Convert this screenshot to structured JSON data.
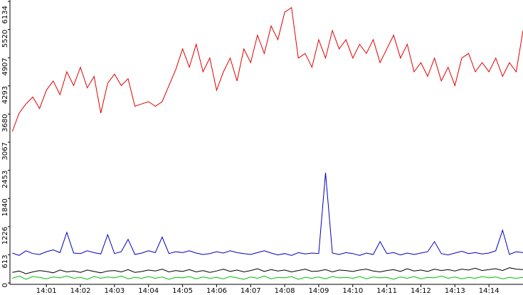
{
  "chart_data": {
    "type": "line",
    "x": [
      0,
      0.2,
      0.4,
      0.6,
      0.8,
      1,
      1.2,
      1.4,
      1.6,
      1.8,
      2,
      2.2,
      2.4,
      2.6,
      2.8,
      3,
      3.2,
      3.4,
      3.6,
      3.8,
      4,
      4.2,
      4.4,
      4.6,
      4.8,
      5,
      5.2,
      5.4,
      5.6,
      5.8,
      6,
      6.2,
      6.4,
      6.6,
      6.8,
      7,
      7.2,
      7.4,
      7.6,
      7.8,
      8,
      8.2,
      8.4,
      8.6,
      8.8,
      9,
      9.2,
      9.4,
      9.6,
      9.8,
      10,
      10.2,
      10.4,
      10.6,
      10.8,
      11,
      11.2,
      11.4,
      11.6,
      11.8,
      12,
      12.2,
      12.4,
      12.6,
      12.8,
      13,
      13.2,
      13.4,
      13.6,
      13.8,
      14,
      14.2,
      14.4,
      14.6,
      14.8,
      15
    ],
    "series": [
      {
        "color": "#e00000",
        "values": [
          3300,
          3700,
          3900,
          4050,
          3800,
          4200,
          4400,
          4100,
          4600,
          4300,
          4700,
          4250,
          4500,
          3700,
          4350,
          4550,
          4300,
          4450,
          3850,
          3900,
          3950,
          3850,
          3950,
          4300,
          4650,
          5100,
          4700,
          5200,
          4600,
          4900,
          4200,
          4600,
          4900,
          4400,
          5100,
          4800,
          5400,
          5000,
          5600,
          5300,
          5900,
          6000,
          4900,
          5000,
          4700,
          5300,
          4900,
          5500,
          5100,
          5300,
          4900,
          5200,
          5000,
          5300,
          4800,
          5100,
          5400,
          4900,
          5200,
          4600,
          4800,
          4500,
          4900,
          4400,
          4700,
          4300,
          4900,
          5000,
          4600,
          4800,
          4600,
          4900,
          4500,
          4800,
          4600,
          5500
        ]
      },
      {
        "color": "#0000c0",
        "values": [
          650,
          600,
          700,
          640,
          620,
          680,
          720,
          660,
          1100,
          650,
          640,
          700,
          660,
          630,
          1050,
          640,
          680,
          950,
          620,
          650,
          700,
          660,
          1000,
          640,
          680,
          660,
          700,
          650,
          620,
          640,
          680,
          650,
          700,
          660,
          640,
          620,
          660,
          700,
          650,
          610,
          640,
          600,
          660,
          630,
          650,
          640,
          2400,
          650,
          620,
          660,
          640,
          600,
          650,
          620,
          900,
          640,
          660,
          610,
          650,
          620,
          650,
          680,
          900,
          640,
          610,
          650,
          690,
          640,
          660,
          630,
          650,
          700,
          1150,
          620,
          680,
          660
        ]
      },
      {
        "color": "#000000",
        "values": [
          230,
          260,
          200,
          240,
          270,
          250,
          220,
          280,
          240,
          260,
          230,
          280,
          250,
          220,
          260,
          270,
          240,
          290,
          230,
          250,
          280,
          260,
          300,
          240,
          270,
          250,
          290,
          240,
          270,
          230,
          260,
          300,
          250,
          280,
          240,
          270,
          310,
          250,
          290,
          260,
          280,
          240,
          270,
          300,
          250,
          260,
          290,
          240,
          280,
          270,
          250,
          280,
          300,
          260,
          240,
          270,
          290,
          250,
          310,
          260,
          280,
          250,
          300,
          270,
          290,
          260,
          300,
          280,
          320,
          270,
          290,
          310,
          270,
          330,
          300,
          290
        ]
      },
      {
        "color": "#00c000",
        "values": [
          100,
          150,
          80,
          140,
          120,
          90,
          130,
          110,
          150,
          100,
          120,
          80,
          140,
          100,
          130,
          110,
          150,
          90,
          120,
          100,
          140,
          100,
          130,
          80,
          120,
          110,
          140,
          90,
          130,
          100,
          120,
          90,
          140,
          110,
          80,
          130,
          100,
          150,
          90,
          120,
          110,
          140,
          80,
          120,
          100,
          130,
          90,
          140,
          110,
          120,
          100,
          140,
          90,
          130,
          110,
          120,
          80,
          130,
          100,
          140,
          90,
          120,
          110,
          150,
          100,
          130,
          90,
          120,
          100,
          140,
          110,
          130,
          90,
          120,
          100,
          120
        ]
      }
    ],
    "xlim": [
      -0.07,
      15
    ],
    "xticks": [
      {
        "value": 1,
        "label": "14:01"
      },
      {
        "value": 2,
        "label": "14:02"
      },
      {
        "value": 3,
        "label": "14:03"
      },
      {
        "value": 4,
        "label": "14:04"
      },
      {
        "value": 5,
        "label": "14:05"
      },
      {
        "value": 6,
        "label": "14:06"
      },
      {
        "value": 7,
        "label": "14:07"
      },
      {
        "value": 8,
        "label": "14:08"
      },
      {
        "value": 9,
        "label": "14:09"
      },
      {
        "value": 10,
        "label": "14:10"
      },
      {
        "value": 11,
        "label": "14:11"
      },
      {
        "value": 12,
        "label": "14:12"
      },
      {
        "value": 13,
        "label": "14:13"
      },
      {
        "value": 14,
        "label": "14:14"
      }
    ],
    "ylim": [
      0,
      6134
    ],
    "yticks": [
      0,
      613,
      1226,
      1840,
      2453,
      3067,
      3680,
      4293,
      4907,
      5520,
      6134
    ]
  }
}
